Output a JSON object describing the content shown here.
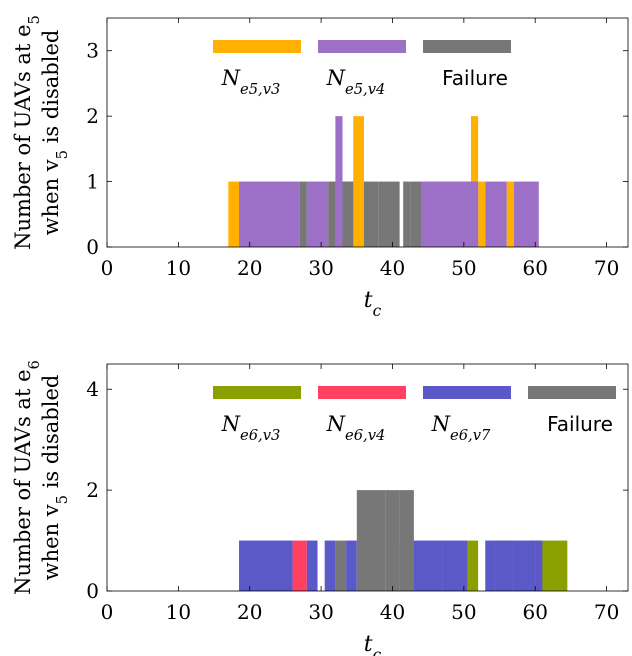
{
  "chart_data": [
    {
      "type": "bar",
      "stacked": true,
      "ylabel_line1": "Number of UAVs at e",
      "ylabel_line1_sub": "5",
      "ylabel_line2_a": "when v",
      "ylabel_line2_sub": "5",
      "ylabel_line2_b": " is disabled",
      "xlabel": "t",
      "xlabel_sub": "c",
      "xlim": [
        0,
        73
      ],
      "ylim": [
        0,
        3.5
      ],
      "xticks": [
        0,
        10,
        20,
        30,
        40,
        50,
        60,
        70
      ],
      "yticks": [
        0,
        1,
        2,
        3
      ],
      "legend_placement": "top-center",
      "series": [
        {
          "name": "N_{e5,v3}",
          "label_main": "N",
          "label_sub": "e5,v3",
          "color": "#ffb000",
          "bars": [
            [
              17,
              18.5,
              1
            ],
            [
              31,
              32,
              1
            ],
            [
              34.5,
              36,
              2
            ],
            [
              43,
              44,
              1
            ],
            [
              44,
              47,
              1
            ],
            [
              48,
              51,
              1
            ],
            [
              51,
              52,
              2
            ],
            [
              52,
              53,
              1
            ],
            [
              56,
              57,
              1
            ]
          ]
        },
        {
          "name": "N_{e5,v4}",
          "label_main": "N",
          "label_sub": "e5,v4",
          "color": "#9c70c6",
          "bars": [
            [
              18.5,
              27,
              1
            ],
            [
              28,
              31,
              1
            ],
            [
              32,
              33,
              2
            ],
            [
              33,
              34.5,
              1
            ],
            [
              44,
              52,
              1
            ],
            [
              44.5,
              52,
              1
            ],
            [
              53,
              56,
              1
            ],
            [
              57,
              60.5,
              1
            ]
          ]
        },
        {
          "name": "Failure",
          "label_main": "Failure",
          "label_sub": "",
          "color": "#777777",
          "bars": [
            [
              27,
              28,
              1
            ],
            [
              31,
              32,
              1
            ],
            [
              33,
              34.5,
              1
            ],
            [
              36,
              38,
              1
            ],
            [
              38,
              41,
              1
            ],
            [
              41.5,
              42.5,
              1
            ],
            [
              42.5,
              44,
              1
            ]
          ]
        }
      ]
    },
    {
      "type": "bar",
      "stacked": true,
      "ylabel_line1": "Number of UAVs at e",
      "ylabel_line1_sub": "6",
      "ylabel_line2_a": "when v",
      "ylabel_line2_sub": "5",
      "ylabel_line2_b": " is disabled",
      "xlabel": "t",
      "xlabel_sub": "c",
      "xlim": [
        0,
        73
      ],
      "ylim": [
        0,
        4.5
      ],
      "xticks": [
        0,
        10,
        20,
        30,
        40,
        50,
        60,
        70
      ],
      "yticks": [
        0,
        2,
        4
      ],
      "legend_placement": "top-center",
      "series": [
        {
          "name": "N_{e6,v3}",
          "label_main": "N",
          "label_sub": "e6,v3",
          "color": "#8aa000",
          "bars": [
            [
              50.5,
              52,
              1
            ],
            [
              54.5,
              57,
              1
            ],
            [
              59,
              60,
              1
            ],
            [
              60,
              62,
              1
            ],
            [
              62,
              64.5,
              1
            ]
          ]
        },
        {
          "name": "N_{e6,v4}",
          "label_main": "N",
          "label_sub": "e6,v4",
          "color": "#ff4060",
          "bars": [
            [
              26,
              28,
              1
            ]
          ]
        },
        {
          "name": "N_{e6,v7}",
          "label_main": "N",
          "label_sub": "e6,v7",
          "color": "#5b58c8",
          "bars": [
            [
              18.5,
              26,
              1
            ],
            [
              28,
              29.5,
              1
            ],
            [
              30.5,
              32,
              1
            ],
            [
              33.5,
              35,
              1
            ],
            [
              43,
              47,
              1
            ],
            [
              47,
              50.5,
              1
            ],
            [
              53,
              54.5,
              1
            ],
            [
              54.5,
              57,
              1
            ],
            [
              57,
              60,
              1
            ],
            [
              60,
              61,
              1
            ]
          ]
        },
        {
          "name": "Failure",
          "label_main": "Failure",
          "label_sub": "",
          "color": "#777777",
          "bars": [
            [
              32,
              33.5,
              1
            ],
            [
              35,
              39,
              2
            ],
            [
              39,
              41,
              2
            ],
            [
              39.5,
              41,
              1
            ],
            [
              41,
              43,
              2
            ],
            [
              41.5,
              43,
              1
            ]
          ]
        }
      ]
    }
  ]
}
